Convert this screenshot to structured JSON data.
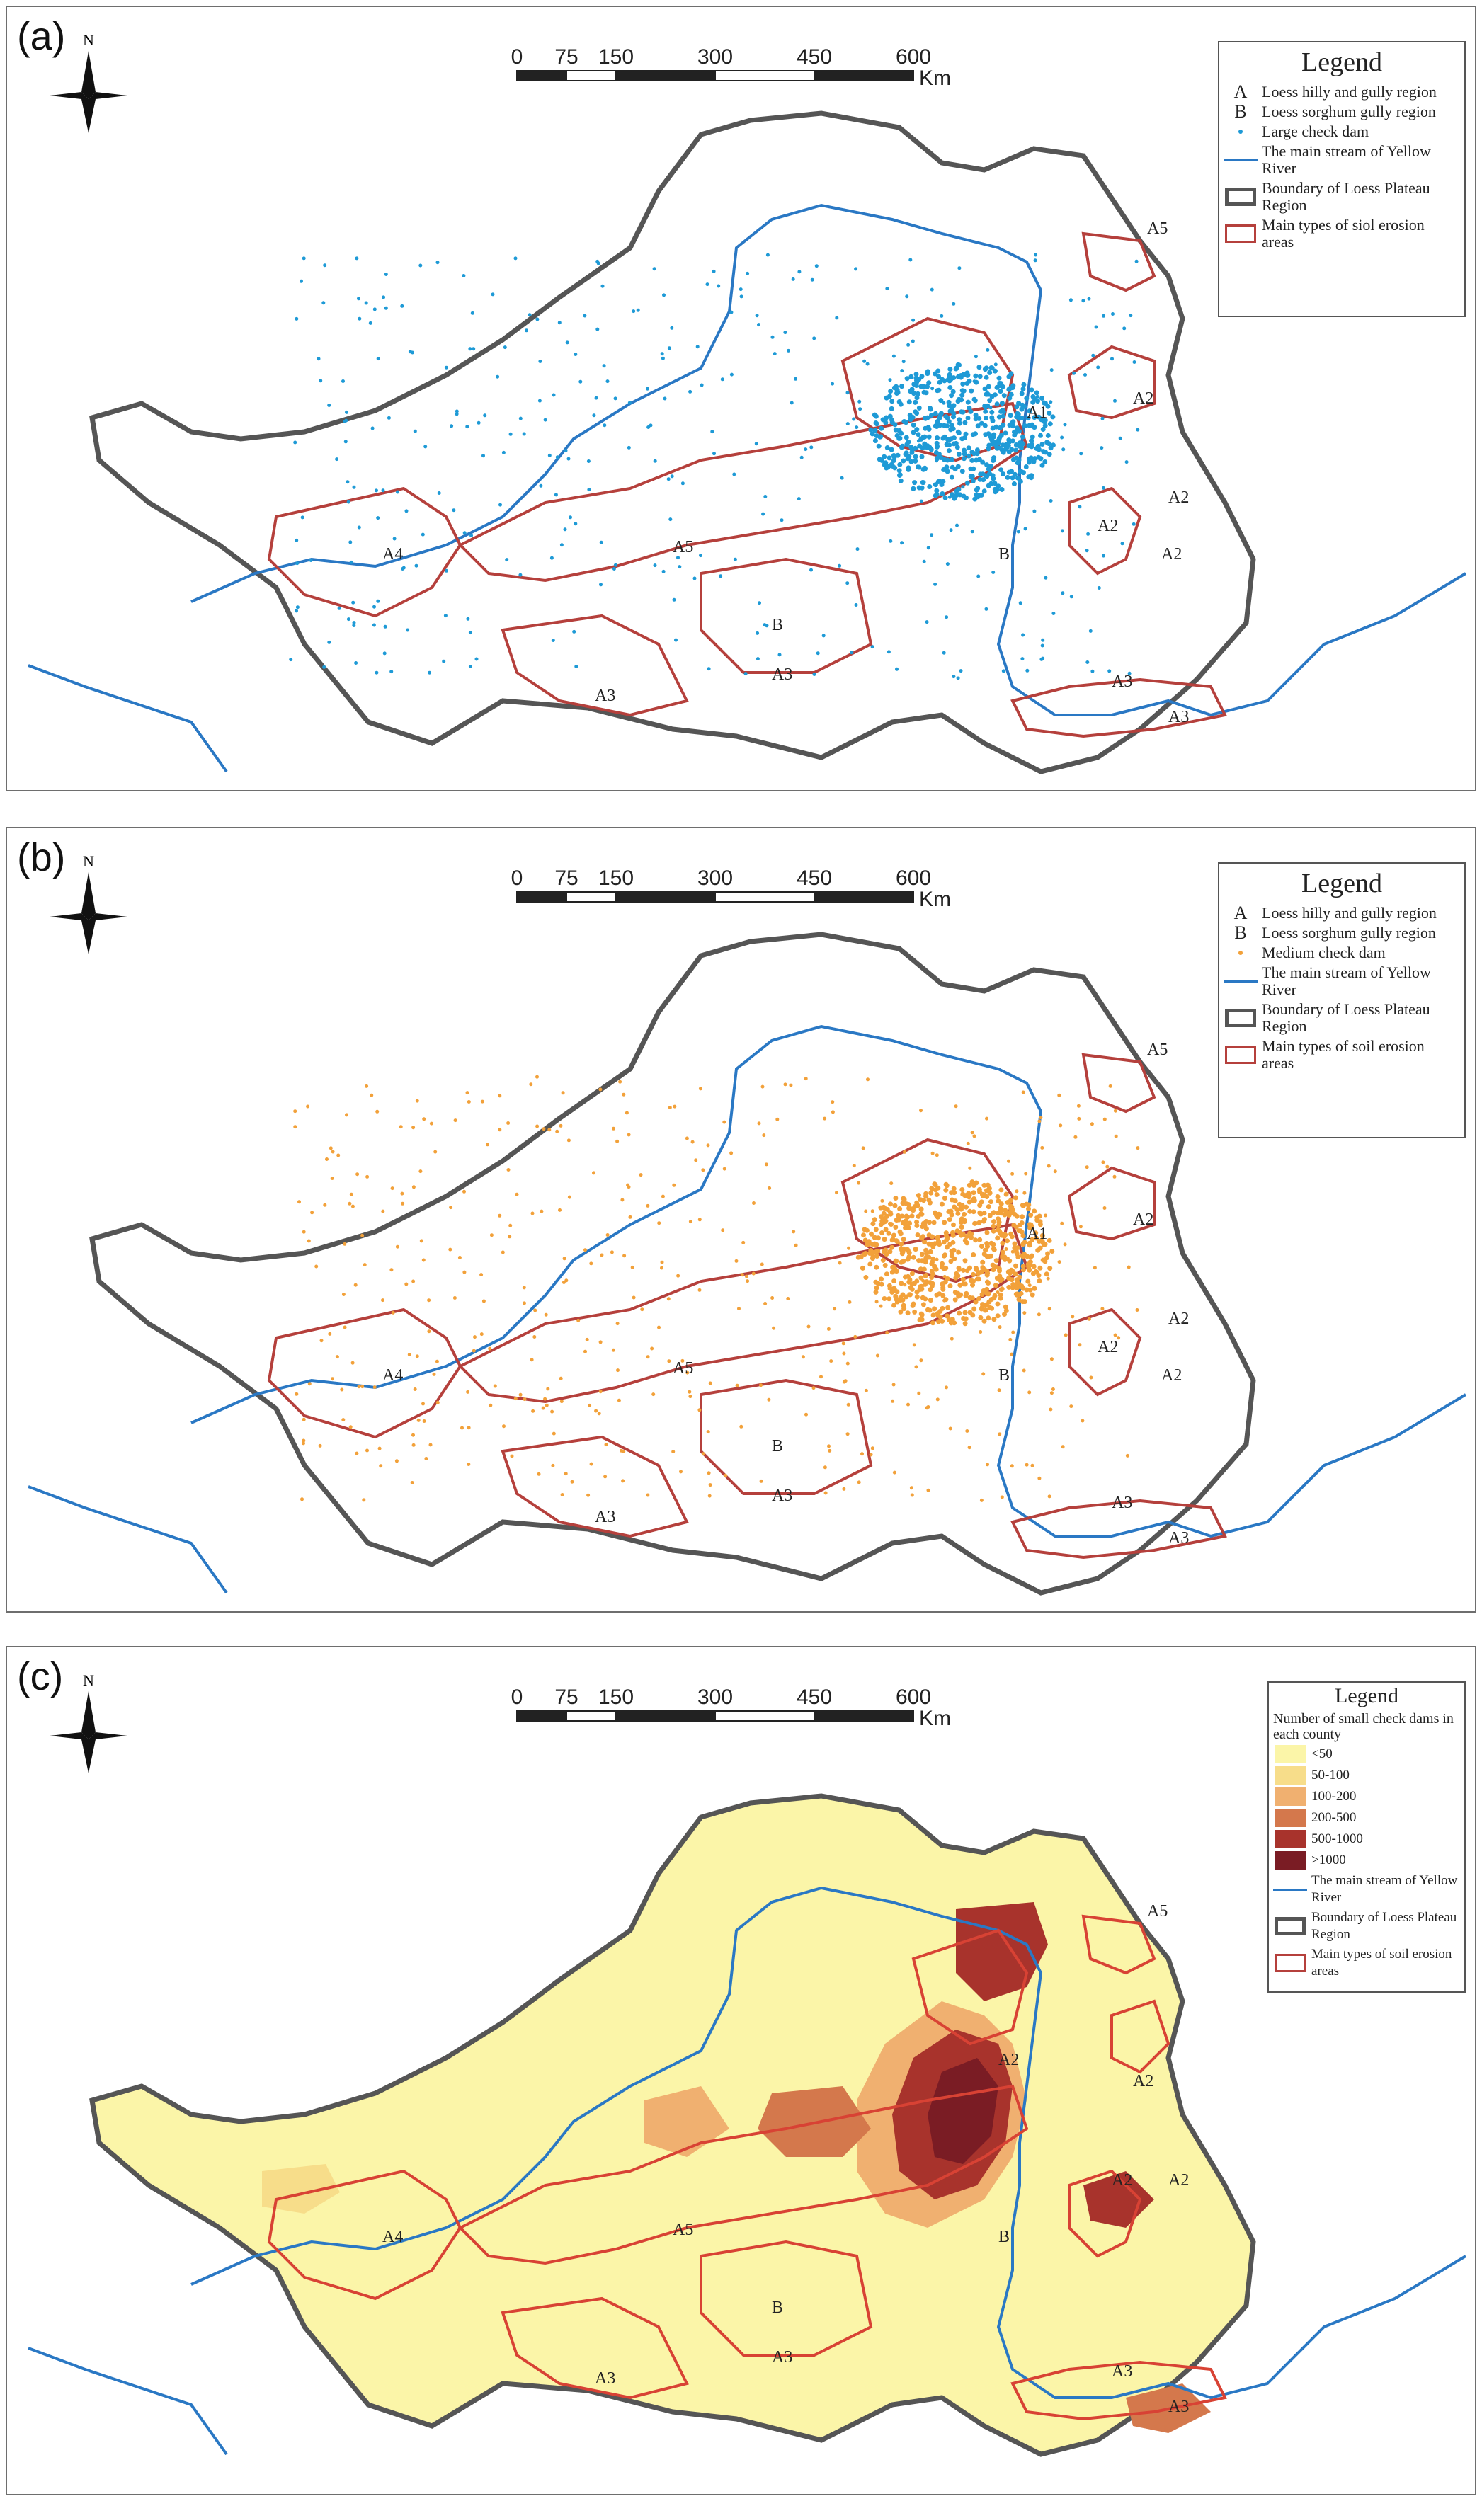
{
  "compass_label": "N",
  "scale": {
    "ticks": [
      "0",
      "75",
      "150",
      "300",
      "450",
      "600"
    ],
    "unit": "Km"
  },
  "colors": {
    "river": "#2a78c4",
    "boundary": "#555555",
    "erosion": "#b5403c",
    "large_dam": "#1e9ad6",
    "medium_dam": "#f2a13a"
  },
  "region_labels": [
    "A1",
    "A2",
    "A2",
    "A2",
    "A2",
    "A3",
    "A3",
    "A3",
    "A3",
    "A4",
    "A5",
    "A5",
    "B",
    "B"
  ],
  "region_labels_c": [
    "A2",
    "A2",
    "A2",
    "A2",
    "A3",
    "A3",
    "A3",
    "A3",
    "A4",
    "A5",
    "A5",
    "B",
    "B"
  ],
  "panels": [
    {
      "letter": "(a)",
      "legend": {
        "title": "Legend",
        "items": [
          {
            "symbol": "letter",
            "symbol_text": "A",
            "label": "Loess hilly and gully region"
          },
          {
            "symbol": "letter",
            "symbol_text": "B",
            "label": "Loess sorghum gully region"
          },
          {
            "symbol": "dot-blue",
            "symbol_text": "",
            "label": "Large check dam"
          },
          {
            "symbol": "line",
            "symbol_text": "",
            "label": "The main stream of Yellow River"
          },
          {
            "symbol": "box-gray",
            "symbol_text": "",
            "label": "Boundary of Loess Plateau Region"
          },
          {
            "symbol": "box-red",
            "symbol_text": "",
            "label": "Main types of siol erosion areas"
          }
        ]
      }
    },
    {
      "letter": "(b)",
      "legend": {
        "title": "Legend",
        "items": [
          {
            "symbol": "letter",
            "symbol_text": "A",
            "label": "Loess hilly and gully region"
          },
          {
            "symbol": "letter",
            "symbol_text": "B",
            "label": "Loess sorghum gully region"
          },
          {
            "symbol": "dot-orange",
            "symbol_text": "",
            "label": "Medium check dam"
          },
          {
            "symbol": "line",
            "symbol_text": "",
            "label": "The main stream of Yellow River"
          },
          {
            "symbol": "box-gray",
            "symbol_text": "",
            "label": "Boundary of Loess Plateau Region"
          },
          {
            "symbol": "box-red",
            "symbol_text": "",
            "label": "Main types of soil erosion areas"
          }
        ]
      }
    },
    {
      "letter": "(c)",
      "legend": {
        "title": "Legend",
        "subtitle": "Number of small check dams in each county",
        "items": [
          {
            "symbol": "fill",
            "color": "#fbf5a8",
            "label": "<50"
          },
          {
            "symbol": "fill",
            "color": "#f7dd8a",
            "label": "50-100"
          },
          {
            "symbol": "fill",
            "color": "#f0b070",
            "label": "100-200"
          },
          {
            "symbol": "fill",
            "color": "#d4784c",
            "label": "200-500"
          },
          {
            "symbol": "fill",
            "color": "#a8332c",
            "label": "500-1000"
          },
          {
            "symbol": "fill",
            "color": "#7a1c24",
            "label": ">1000"
          },
          {
            "symbol": "line",
            "label": "The main stream of Yellow River"
          },
          {
            "symbol": "box-gray",
            "label": "Boundary of Loess Plateau Region"
          },
          {
            "symbol": "box-red",
            "label": "Main types of soil erosion areas"
          }
        ]
      }
    }
  ]
}
